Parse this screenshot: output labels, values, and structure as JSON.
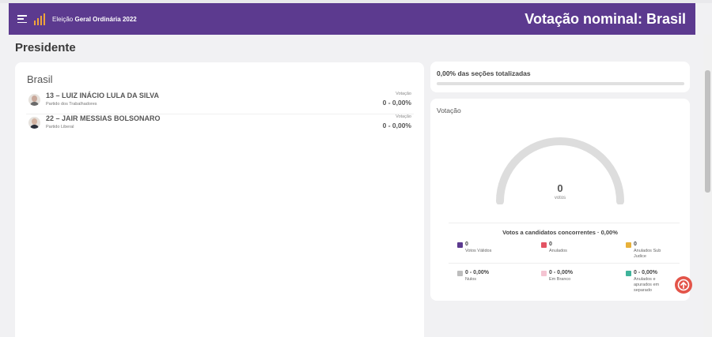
{
  "header": {
    "election_prefix": "Eleição",
    "election_name": "Geral Ordinária 2022",
    "title": "Votação nominal: Brasil"
  },
  "page_title": "Presidente",
  "left_panel": {
    "region": "Brasil",
    "candidates": [
      {
        "name": "13 – LUIZ INÁCIO LULA DA SILVA",
        "party": "Partido dos Trabalhadores",
        "vote_label": "Votação",
        "vote_value": "0 - 0,00%"
      },
      {
        "name": "22 – JAIR MESSIAS BOLSONARO",
        "party": "Partido Liberal",
        "vote_label": "Votação",
        "vote_value": "0 - 0,00%"
      }
    ]
  },
  "progress": {
    "text": "0,00% das seções totalizadas",
    "value_percent": 0
  },
  "vote_panel": {
    "title": "Votação",
    "gauge_value": "0",
    "gauge_label": "votos",
    "concurrent_title": "Votos a candidatos concorrentes · 0,00%",
    "stats_row1": [
      {
        "value": "0",
        "label": "Votos Válidos",
        "color": "#5c3a8f"
      },
      {
        "value": "0",
        "label": "Anulados",
        "color": "#e35464"
      },
      {
        "value": "0",
        "label": "Anulados Sub Judice",
        "color": "#e8b13a"
      }
    ],
    "stats_row2": [
      {
        "value": "0 - 0,00%",
        "label": "Nulos",
        "color": "#bdbdbd"
      },
      {
        "value": "0 - 0,00%",
        "label": "Em Branco",
        "color": "#f4c4d2"
      },
      {
        "value": "0 - 0,00%",
        "label": "Anulados e apurados em separado",
        "color": "#3fb39a"
      }
    ]
  },
  "colors": {
    "brand": "#5c3a8f",
    "accent": "#e35449",
    "logo": "#f0a43a",
    "gauge_track": "#dddddd"
  },
  "icons": {
    "menu": "menu-icon",
    "logo": "bar-chart-logo-icon",
    "scroll_top": "arrow-up-circle-icon"
  }
}
